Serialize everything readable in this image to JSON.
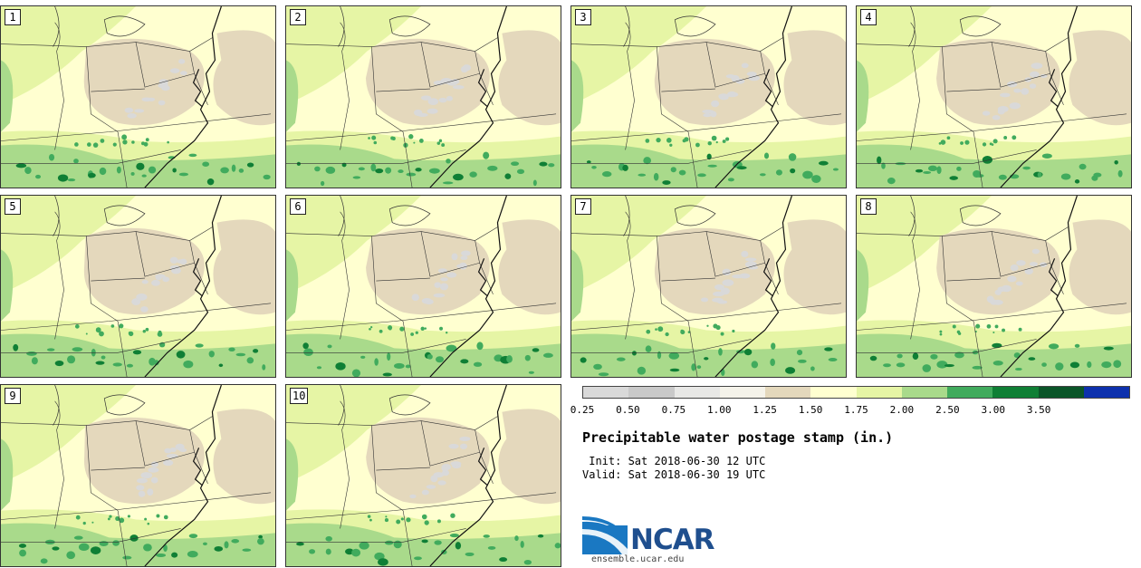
{
  "members": [
    "1",
    "2",
    "3",
    "4",
    "5",
    "6",
    "7",
    "8",
    "9",
    "10"
  ],
  "colorbar": {
    "colors": [
      "#d9d9d9",
      "#c9c9c9",
      "#e8e8e6",
      "#f5f3ea",
      "#e4d8bc",
      "#ffffd0",
      "#e6f5a5",
      "#a9da8b",
      "#41ab5d",
      "#0f7f35",
      "#0a5528",
      "#0d31ad"
    ],
    "ticks": [
      "0.25",
      "0.50",
      "0.75",
      "1.00",
      "1.25",
      "1.50",
      "1.75",
      "2.00",
      "2.50",
      "3.00",
      "3.50"
    ]
  },
  "field_colors": {
    "dry": "#e4d8bc",
    "very_dry": "#d9d9d9",
    "mid": "#ffffd0",
    "moist": "#e6f5a5",
    "wetter": "#a9da8b",
    "wet": "#41ab5d",
    "very_wet": "#0f7f35"
  },
  "title": "Precipitable water postage stamp (in.)",
  "init": " Init: Sat 2018-06-30 12 UTC",
  "valid": "Valid: Sat 2018-06-30 19 UTC",
  "logo": {
    "text": "NCAR",
    "url": "ensemble.ucar.edu"
  }
}
